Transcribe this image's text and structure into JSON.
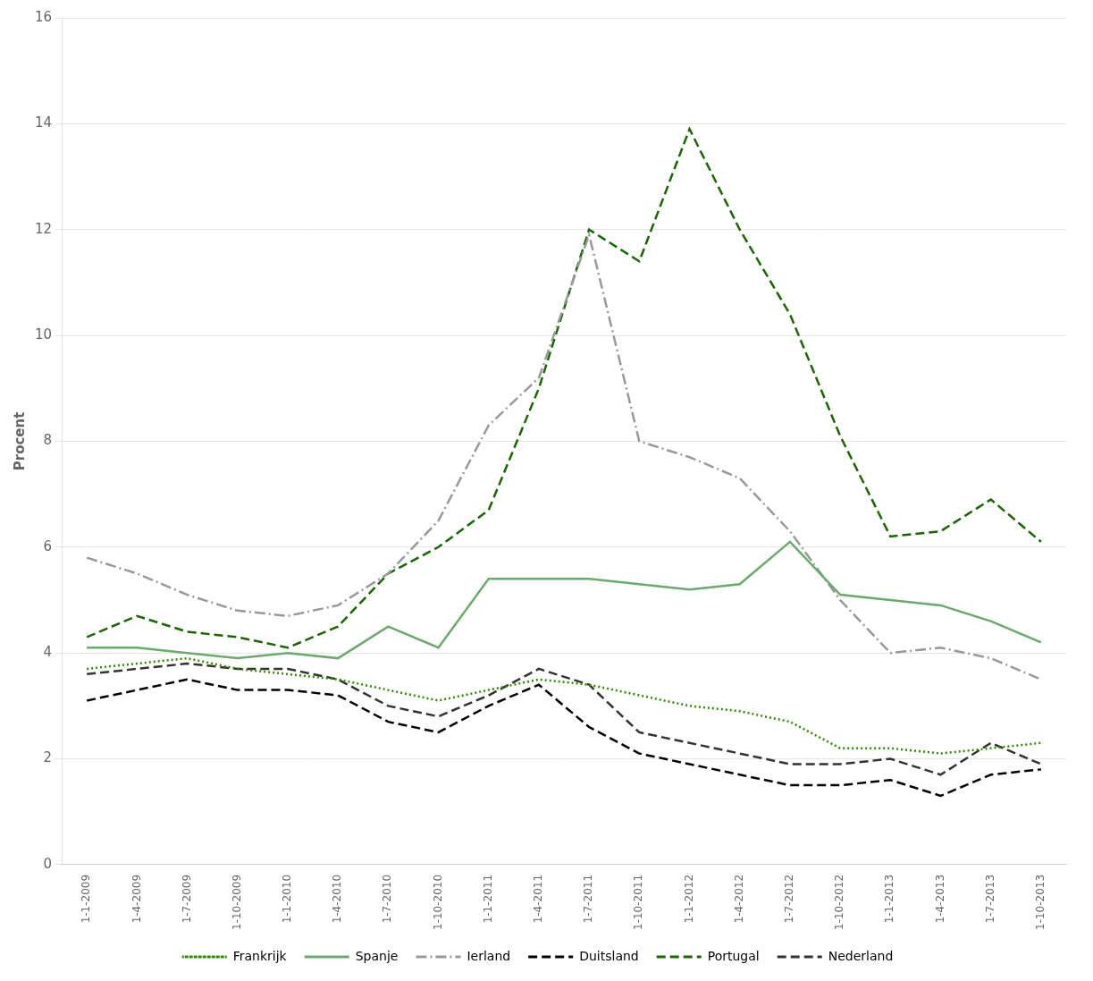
{
  "chart_data": {
    "type": "line",
    "ylabel": "Procent",
    "categories": [
      "1-1-2009",
      "1-4-2009",
      "1-7-2009",
      "1-10-2009",
      "1-1-2010",
      "1-4-2010",
      "1-7-2010",
      "1-10-2010",
      "1-1-2011",
      "1-4-2011",
      "1-7-2011",
      "1-10-2011",
      "1-1-2012",
      "1-4-2012",
      "1-7-2012",
      "1-10-2012",
      "1-1-2013",
      "1-4-2013",
      "1-7-2013",
      "1-10-2013"
    ],
    "series": [
      {
        "name": "Frankrijk",
        "color": "#2e8b00",
        "line_style": "dotted",
        "values": [
          3.7,
          3.8,
          3.9,
          3.7,
          3.6,
          3.5,
          3.3,
          3.1,
          3.3,
          3.5,
          3.4,
          3.2,
          3.0,
          2.9,
          2.7,
          2.2,
          2.2,
          2.1,
          2.2,
          2.3
        ]
      },
      {
        "name": "Spanje",
        "color": "#6aaa6a",
        "line_style": "solid",
        "values": [
          4.1,
          4.1,
          4.0,
          3.9,
          4.0,
          3.9,
          4.5,
          4.1,
          5.4,
          5.4,
          5.4,
          5.3,
          5.2,
          5.3,
          6.1,
          5.1,
          5.0,
          4.9,
          4.6,
          4.2
        ]
      },
      {
        "name": "Ierland",
        "color": "#999999",
        "line_style": "dashdot",
        "values": [
          5.8,
          5.5,
          5.1,
          4.8,
          4.7,
          4.9,
          5.5,
          6.5,
          8.3,
          9.2,
          11.9,
          8.0,
          7.7,
          7.3,
          6.3,
          5.0,
          4.0,
          4.1,
          3.9,
          3.5
        ]
      },
      {
        "name": "Duitsland",
        "color": "#000000",
        "line_style": "dashed",
        "values": [
          3.1,
          3.3,
          3.5,
          3.3,
          3.3,
          3.2,
          2.7,
          2.5,
          3.0,
          3.4,
          2.6,
          2.1,
          1.9,
          1.7,
          1.5,
          1.5,
          1.6,
          1.3,
          1.7,
          1.8
        ]
      },
      {
        "name": "Portugal",
        "color": "#1a6600",
        "line_style": "dashed",
        "values": [
          4.3,
          4.7,
          4.4,
          4.3,
          4.1,
          4.5,
          5.5,
          6.0,
          6.7,
          9.0,
          12.0,
          11.4,
          13.9,
          12.0,
          10.4,
          8.1,
          6.2,
          6.3,
          6.9,
          6.1
        ]
      },
      {
        "name": "Nederland",
        "color": "#333333",
        "line_style": "dashed",
        "values": [
          3.6,
          3.7,
          3.8,
          3.7,
          3.7,
          3.5,
          3.0,
          2.8,
          3.2,
          3.7,
          3.4,
          2.5,
          2.3,
          2.1,
          1.9,
          1.9,
          2.0,
          1.7,
          2.3,
          1.9
        ]
      }
    ],
    "ylim": [
      0,
      16
    ],
    "yticks": [
      0,
      2,
      4,
      6,
      8,
      10,
      12,
      14,
      16
    ],
    "grid": true,
    "legend": "bottom"
  }
}
